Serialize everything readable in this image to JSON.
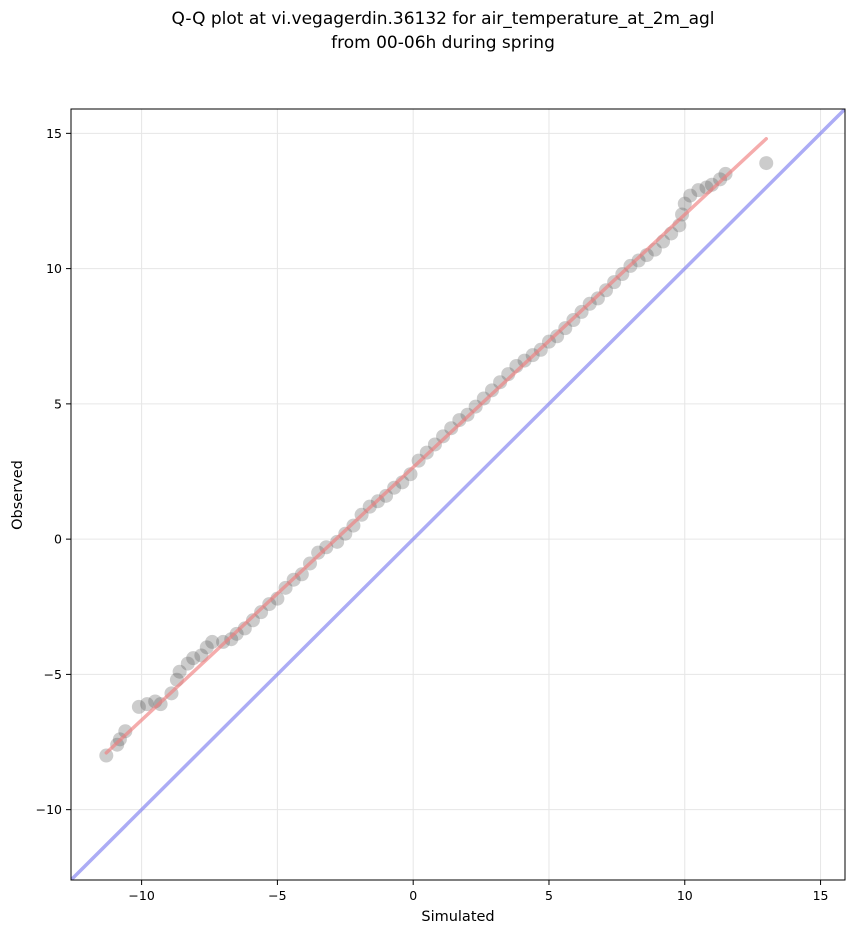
{
  "chart_data": {
    "type": "scatter",
    "title": "Q-Q plot at vi.vegagerdin.36132 for air_temperature_at_2m_agl",
    "subtitle": "from 00-06h during spring",
    "xlabel": "Simulated",
    "ylabel": "Observed",
    "xlim": [
      -12.6,
      15.9
    ],
    "ylim": [
      -12.6,
      15.9
    ],
    "xticks": [
      -10,
      -5,
      0,
      5,
      10,
      15
    ],
    "yticks": [
      -10,
      -5,
      0,
      5,
      10,
      15
    ],
    "xtick_labels": [
      "−10",
      "−5",
      "0",
      "5",
      "10",
      "15"
    ],
    "ytick_labels": [
      "−10",
      "−5",
      "0",
      "5",
      "10",
      "15"
    ],
    "grid": true,
    "point_color": "#555555",
    "fit_color": "#f08080",
    "identity_color": "#8080f0",
    "scatter_points": [
      [
        -11.3,
        -8.0
      ],
      [
        -10.9,
        -7.6
      ],
      [
        -10.8,
        -7.4
      ],
      [
        -10.6,
        -7.1
      ],
      [
        -10.1,
        -6.2
      ],
      [
        -9.8,
        -6.1
      ],
      [
        -9.5,
        -6.0
      ],
      [
        -9.3,
        -6.1
      ],
      [
        -8.9,
        -5.7
      ],
      [
        -8.7,
        -5.2
      ],
      [
        -8.6,
        -4.9
      ],
      [
        -8.3,
        -4.6
      ],
      [
        -8.1,
        -4.4
      ],
      [
        -7.8,
        -4.3
      ],
      [
        -7.6,
        -4.0
      ],
      [
        -7.4,
        -3.8
      ],
      [
        -7.0,
        -3.8
      ],
      [
        -6.7,
        -3.7
      ],
      [
        -6.5,
        -3.5
      ],
      [
        -6.2,
        -3.3
      ],
      [
        -5.9,
        -3.0
      ],
      [
        -5.6,
        -2.7
      ],
      [
        -5.3,
        -2.4
      ],
      [
        -5.0,
        -2.2
      ],
      [
        -4.7,
        -1.8
      ],
      [
        -4.4,
        -1.5
      ],
      [
        -4.1,
        -1.3
      ],
      [
        -3.8,
        -0.9
      ],
      [
        -3.5,
        -0.5
      ],
      [
        -3.2,
        -0.3
      ],
      [
        -2.8,
        -0.1
      ],
      [
        -2.5,
        0.2
      ],
      [
        -2.2,
        0.5
      ],
      [
        -1.9,
        0.9
      ],
      [
        -1.6,
        1.2
      ],
      [
        -1.3,
        1.4
      ],
      [
        -1.0,
        1.6
      ],
      [
        -0.7,
        1.9
      ],
      [
        -0.4,
        2.1
      ],
      [
        -0.1,
        2.4
      ],
      [
        0.2,
        2.9
      ],
      [
        0.5,
        3.2
      ],
      [
        0.8,
        3.5
      ],
      [
        1.1,
        3.8
      ],
      [
        1.4,
        4.1
      ],
      [
        1.7,
        4.4
      ],
      [
        2.0,
        4.6
      ],
      [
        2.3,
        4.9
      ],
      [
        2.6,
        5.2
      ],
      [
        2.9,
        5.5
      ],
      [
        3.2,
        5.8
      ],
      [
        3.5,
        6.1
      ],
      [
        3.8,
        6.4
      ],
      [
        4.1,
        6.6
      ],
      [
        4.4,
        6.8
      ],
      [
        4.7,
        7.0
      ],
      [
        5.0,
        7.3
      ],
      [
        5.3,
        7.5
      ],
      [
        5.6,
        7.8
      ],
      [
        5.9,
        8.1
      ],
      [
        6.2,
        8.4
      ],
      [
        6.5,
        8.7
      ],
      [
        6.8,
        8.9
      ],
      [
        7.1,
        9.2
      ],
      [
        7.4,
        9.5
      ],
      [
        7.7,
        9.8
      ],
      [
        8.0,
        10.1
      ],
      [
        8.3,
        10.3
      ],
      [
        8.6,
        10.5
      ],
      [
        8.9,
        10.7
      ],
      [
        9.2,
        11.0
      ],
      [
        9.5,
        11.3
      ],
      [
        9.8,
        11.6
      ],
      [
        9.9,
        12.0
      ],
      [
        10.0,
        12.4
      ],
      [
        10.2,
        12.7
      ],
      [
        10.5,
        12.9
      ],
      [
        10.8,
        13.0
      ],
      [
        11.0,
        13.1
      ],
      [
        11.3,
        13.3
      ],
      [
        11.5,
        13.5
      ],
      [
        13.0,
        13.9
      ]
    ],
    "fit_line": [
      [
        -11.3,
        -7.9
      ],
      [
        13.0,
        14.8
      ]
    ],
    "identity_line": [
      [
        -12.6,
        -12.6
      ],
      [
        15.9,
        15.9
      ]
    ]
  }
}
